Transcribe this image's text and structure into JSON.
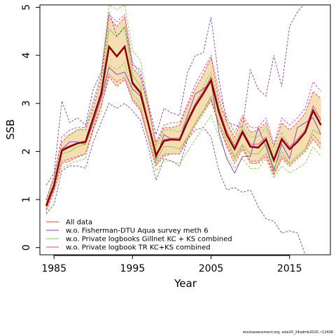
{
  "chart_data": {
    "type": "line",
    "xlabel": "Year",
    "ylabel": "SSB",
    "xlim": [
      1983.2,
      2020.2
    ],
    "ylim": [
      -0.15,
      5.05
    ],
    "xticks": [
      1985,
      1995,
      2005,
      2015
    ],
    "yticks": [
      0,
      1,
      2,
      3,
      4,
      5
    ],
    "legend_position": "bottom-left",
    "x": [
      1984,
      1985,
      1986,
      1987,
      1988,
      1989,
      1990,
      1991,
      1992,
      1993,
      1994,
      1995,
      1996,
      1997,
      1998,
      1999,
      2000,
      2001,
      2002,
      2003,
      2004,
      2005,
      2006,
      2007,
      2008,
      2009,
      2010,
      2011,
      2012,
      2013,
      2014,
      2015,
      2016,
      2017,
      2018,
      2019
    ],
    "band": {
      "color": "#f5deb3",
      "lower": [
        0.78,
        1.2,
        1.75,
        1.8,
        1.88,
        1.95,
        2.5,
        2.95,
        3.55,
        3.35,
        3.5,
        3.05,
        2.85,
        2.25,
        1.7,
        1.9,
        1.95,
        1.95,
        2.25,
        2.55,
        2.8,
        3.05,
        2.55,
        2.1,
        1.75,
        2.05,
        1.75,
        1.75,
        1.9,
        1.5,
        1.85,
        1.7,
        1.85,
        2.0,
        2.25,
        2.05
      ],
      "upper": [
        0.98,
        1.45,
        2.2,
        2.35,
        2.45,
        2.45,
        2.9,
        3.45,
        4.8,
        4.6,
        4.8,
        3.75,
        3.55,
        2.9,
        2.15,
        2.5,
        2.5,
        2.55,
        2.95,
        3.3,
        3.6,
        3.95,
        3.1,
        2.6,
        2.3,
        2.7,
        2.4,
        2.45,
        2.6,
        2.1,
        2.6,
        2.45,
        2.6,
        2.8,
        3.25,
        3.1
      ]
    },
    "series": [
      {
        "name": "Base run",
        "color": "#8b0000",
        "style": "solid",
        "values": [
          0.87,
          1.3,
          2.02,
          2.1,
          2.17,
          2.2,
          2.7,
          3.2,
          4.18,
          3.98,
          4.18,
          3.42,
          3.22,
          2.58,
          1.92,
          2.22,
          2.25,
          2.24,
          2.62,
          2.95,
          3.2,
          3.48,
          2.82,
          2.35,
          2.05,
          2.4,
          2.1,
          2.08,
          2.25,
          1.82,
          2.25,
          2.05,
          2.2,
          2.4,
          2.85,
          2.55
        ]
      },
      {
        "name": "All data",
        "color": "#e8443a",
        "style": "solid",
        "values": [
          0.87,
          1.3,
          2.02,
          2.1,
          2.17,
          2.2,
          2.7,
          3.2,
          4.18,
          3.98,
          4.18,
          3.42,
          3.22,
          2.58,
          1.92,
          2.22,
          2.25,
          2.24,
          2.62,
          2.95,
          3.2,
          3.48,
          2.82,
          2.35,
          2.05,
          2.4,
          2.1,
          2.08,
          2.25,
          1.82,
          2.25,
          2.05,
          2.2,
          2.4,
          2.85,
          2.55
        ]
      },
      {
        "name": "All data lower",
        "color": "#e8443a",
        "style": "dashed",
        "values": [
          0.78,
          1.2,
          1.75,
          1.8,
          1.88,
          1.95,
          2.5,
          2.95,
          3.55,
          3.35,
          3.5,
          3.05,
          2.85,
          2.25,
          1.7,
          1.9,
          1.95,
          1.95,
          2.25,
          2.55,
          2.8,
          3.05,
          2.55,
          2.1,
          1.75,
          2.05,
          1.75,
          1.75,
          1.9,
          1.5,
          1.85,
          1.7,
          1.85,
          2.0,
          2.25,
          2.05
        ]
      },
      {
        "name": "All data upper",
        "color": "#e8443a",
        "style": "dashed",
        "values": [
          0.98,
          1.45,
          2.2,
          2.35,
          2.45,
          2.45,
          2.9,
          3.45,
          4.8,
          4.6,
          4.8,
          3.75,
          3.55,
          2.9,
          2.15,
          2.5,
          2.5,
          2.55,
          2.95,
          3.3,
          3.6,
          3.95,
          3.1,
          2.6,
          2.3,
          2.7,
          2.4,
          2.45,
          2.6,
          2.1,
          2.6,
          2.45,
          2.6,
          2.8,
          3.25,
          3.1
        ]
      },
      {
        "name": "w.o. Fisherman-DTU Aqua survey meth 6",
        "color": "#7a3fb8",
        "style": "solid",
        "values": [
          0.85,
          1.25,
          2.05,
          2.2,
          2.2,
          2.15,
          2.6,
          3.1,
          3.75,
          3.6,
          3.65,
          3.3,
          3.15,
          2.55,
          1.85,
          2.35,
          2.25,
          2.25,
          2.75,
          3.2,
          3.3,
          3.45,
          2.4,
          1.85,
          1.55,
          1.9,
          1.9,
          2.5,
          2.1,
          1.6,
          2.15,
          1.85,
          2.5,
          2.6,
          2.7,
          2.35
        ]
      },
      {
        "name": "w.o. Fisherman-DTU Aqua survey meth 6 lower",
        "color": "#7a3fb8",
        "style": "dashed",
        "values": [
          0.7,
          0.9,
          1.6,
          1.7,
          1.7,
          1.65,
          2.2,
          2.6,
          3.0,
          2.9,
          3.0,
          2.85,
          2.65,
          2.1,
          1.4,
          1.85,
          1.8,
          1.7,
          2.25,
          2.45,
          2.5,
          2.3,
          1.6,
          1.2,
          1.25,
          1.15,
          1.2,
          0.85,
          0.6,
          0.55,
          0.3,
          0.35,
          0.3,
          -0.15,
          -0.15,
          -0.15
        ]
      },
      {
        "name": "w.o. Fisherman-DTU Aqua survey meth 6 upper",
        "color": "#7a3fb8",
        "style": "dashed",
        "values": [
          1.3,
          1.55,
          3.05,
          2.6,
          2.7,
          2.55,
          3.3,
          3.65,
          4.9,
          4.4,
          4.6,
          3.8,
          3.7,
          3.0,
          2.35,
          2.9,
          2.8,
          2.75,
          3.65,
          4.0,
          4.05,
          4.8,
          3.5,
          2.6,
          2.55,
          2.5,
          3.7,
          3.3,
          3.15,
          4.0,
          3.35,
          4.6,
          4.9,
          5.1,
          5.1,
          5.1
        ]
      },
      {
        "name": "w.o. Private logbooks Gillnet KC + KS combined",
        "color": "#7fcf3f",
        "style": "solid",
        "values": [
          0.85,
          1.3,
          1.95,
          2.0,
          2.1,
          2.15,
          2.7,
          3.2,
          4.55,
          4.38,
          4.58,
          3.6,
          3.35,
          2.6,
          1.8,
          2.1,
          2.1,
          2.05,
          2.3,
          2.6,
          2.85,
          3.15,
          2.6,
          2.25,
          1.9,
          2.15,
          1.95,
          1.95,
          2.15,
          1.65,
          2.0,
          1.75,
          1.9,
          2.05,
          2.45,
          2.35
        ]
      },
      {
        "name": "w.o. Private logbooks Gillnet KC + KS combined lower",
        "color": "#7fcf3f",
        "style": "dashed",
        "values": [
          0.72,
          1.15,
          1.65,
          1.75,
          1.8,
          1.85,
          2.45,
          2.85,
          3.8,
          3.7,
          3.85,
          3.2,
          3.0,
          2.25,
          1.6,
          1.8,
          1.8,
          1.75,
          2.0,
          2.25,
          2.5,
          2.75,
          2.3,
          1.9,
          1.65,
          1.85,
          1.65,
          1.65,
          1.85,
          1.45,
          1.7,
          1.55,
          1.65,
          1.75,
          2.1,
          1.9
        ]
      },
      {
        "name": "w.o. Private logbooks Gillnet KC + KS combined upper",
        "color": "#7fcf3f",
        "style": "dashed",
        "values": [
          1.0,
          1.45,
          2.3,
          2.35,
          2.45,
          2.5,
          3.05,
          3.6,
          5.05,
          4.95,
          5.05,
          4.1,
          3.9,
          3.0,
          2.05,
          2.45,
          2.45,
          2.4,
          2.7,
          3.0,
          3.35,
          3.65,
          3.0,
          2.6,
          2.2,
          2.5,
          2.3,
          2.3,
          2.5,
          1.95,
          2.4,
          2.1,
          2.25,
          2.4,
          2.85,
          2.7
        ]
      },
      {
        "name": "w.o. Private logbook TR KC+KS combined",
        "color": "#e8408c",
        "style": "solid",
        "values": [
          0.88,
          1.32,
          2.05,
          2.12,
          2.18,
          2.22,
          2.72,
          3.22,
          4.2,
          4.0,
          4.2,
          3.45,
          3.25,
          2.6,
          1.95,
          2.25,
          2.28,
          2.28,
          2.65,
          3.0,
          3.25,
          3.55,
          2.9,
          2.42,
          2.12,
          2.45,
          2.15,
          2.15,
          2.3,
          1.85,
          2.3,
          2.1,
          2.25,
          2.45,
          2.95,
          2.65
        ]
      },
      {
        "name": "w.o. Private logbook TR KC+KS combined lower",
        "color": "#e8408c",
        "style": "dashed",
        "values": [
          0.8,
          1.2,
          1.8,
          1.85,
          1.9,
          1.95,
          2.45,
          2.95,
          3.6,
          3.45,
          3.55,
          3.1,
          2.9,
          2.3,
          1.75,
          1.95,
          1.95,
          1.95,
          2.3,
          2.6,
          2.85,
          3.1,
          2.55,
          2.15,
          1.85,
          2.1,
          1.8,
          1.8,
          1.95,
          1.55,
          1.9,
          1.75,
          1.9,
          2.05,
          2.35,
          2.15
        ]
      },
      {
        "name": "w.o. Private logbook TR KC+KS combined upper",
        "color": "#e8408c",
        "style": "dashed",
        "values": [
          1.0,
          1.5,
          2.3,
          2.45,
          2.5,
          2.5,
          3.0,
          3.55,
          4.85,
          4.7,
          4.85,
          3.85,
          3.6,
          2.95,
          2.2,
          2.55,
          2.6,
          2.6,
          3.0,
          3.4,
          3.7,
          4.0,
          3.25,
          2.7,
          2.4,
          2.75,
          2.5,
          2.5,
          2.7,
          2.15,
          2.7,
          2.55,
          2.7,
          2.9,
          3.45,
          3.25
        ]
      }
    ],
    "legend": [
      {
        "label": "All data",
        "color": "#e8443a"
      },
      {
        "label": "w.o. Fisherman-DTU Aqua survey meth 6",
        "color": "#7a3fb8"
      },
      {
        "label": "w.o. Private logbooks Gillnet KC + KS combined",
        "color": "#7fcf3f"
      },
      {
        "label": "w.o. Private logbook TR KC+KS combined",
        "color": "#e8408c"
      }
    ]
  },
  "footer": "stockassessment.org, sole20_24admb2020, r12426"
}
